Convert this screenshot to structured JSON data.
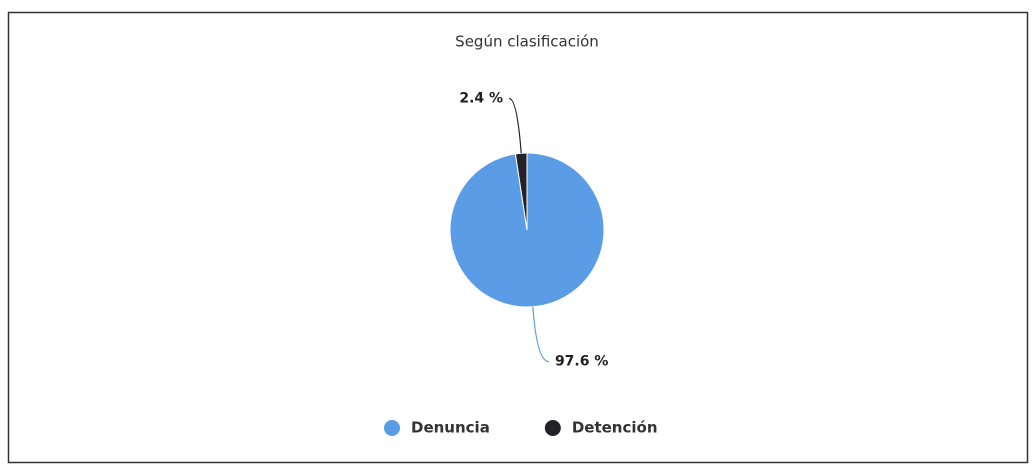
{
  "chart_data": {
    "type": "pie",
    "title": "Según clasificación",
    "categories": [
      "Denuncia",
      "Detención"
    ],
    "values": [
      97.6,
      2.4
    ],
    "value_labels": [
      "97.6 %",
      "2.4 %"
    ],
    "colors": [
      "#5a9de6",
      "#222228"
    ]
  }
}
